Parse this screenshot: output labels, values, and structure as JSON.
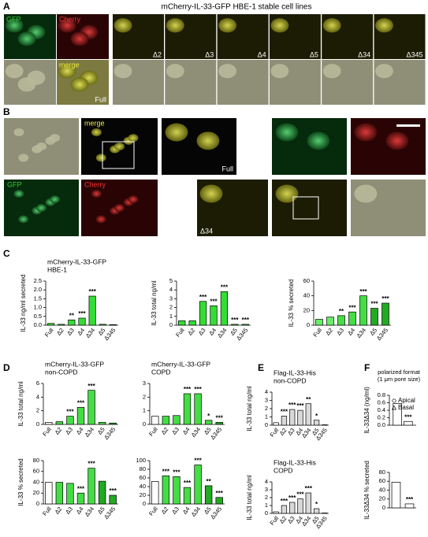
{
  "figure": {
    "panel_labels": [
      "A",
      "B",
      "C",
      "D",
      "E",
      "F"
    ],
    "panel_a": {
      "title": "mCherry-IL-33-GFP HBE-1 stable cell lines",
      "labels": [
        "GFP",
        "Cherry",
        "merge",
        "Full",
        "Δ2",
        "Δ3",
        "Δ4",
        "Δ5",
        "Δ34",
        "Δ345"
      ]
    },
    "panel_b": {
      "labels": [
        "merge",
        "Full",
        "GFP",
        "Cherry",
        "Δ34"
      ]
    }
  },
  "chart_data": [
    {
      "type": "bar",
      "title": "mCherry-IL-33-GFP",
      "subtitle": "HBE-1",
      "y_label": "IL-33 ng/ml secreted",
      "categories": [
        "Full",
        "Δ2",
        "Δ3",
        "Δ4",
        "Δ34",
        "Δ5",
        "Δ345"
      ],
      "values": [
        0.1,
        0.05,
        0.3,
        0.4,
        1.65,
        0.05,
        0.03
      ],
      "annotations": [
        null,
        null,
        "**",
        "***",
        "***",
        null,
        null
      ],
      "colors": [
        "#33dd33",
        "#33dd33",
        "#33dd33",
        "#33dd33",
        "#33dd33",
        "#33dd33",
        "#33dd33"
      ],
      "ylim": [
        0,
        2.5
      ],
      "yticks": [
        {
          "value": 0,
          "label": "0.0"
        },
        0.5,
        {
          "value": 1,
          "label": "1.0"
        },
        1.5,
        {
          "value": 2,
          "label": "2.0"
        },
        2.5
      ]
    },
    {
      "type": "bar",
      "y_label": "IL-33 total ng/ml",
      "categories": [
        "Full",
        "Δ2",
        "Δ3",
        "Δ4",
        "Δ34",
        "Δ5",
        "Δ345"
      ],
      "values": [
        0.5,
        0.5,
        2.7,
        2.2,
        3.8,
        0.1,
        0.1
      ],
      "annotations": [
        null,
        null,
        "***",
        "***",
        "***",
        "***",
        "***"
      ],
      "colors": [
        "#33dd33",
        "#33dd33",
        "#33dd33",
        "#33dd33",
        "#33dd33",
        "#33dd33",
        "#33dd33"
      ],
      "ylim": [
        0,
        5
      ],
      "yticks": [
        0,
        1,
        2,
        3,
        4,
        5
      ]
    },
    {
      "type": "bar",
      "y_label": "IL-33 % secreted",
      "categories": [
        "Full",
        "Δ2",
        "Δ3",
        "Δ4",
        "Δ34",
        "Δ5",
        "Δ345"
      ],
      "values": [
        8,
        11,
        13,
        18,
        40,
        23,
        30
      ],
      "annotations": [
        null,
        null,
        "**",
        "***",
        "***",
        "***",
        "***"
      ],
      "colors": [
        "#66ee66",
        "#66ee66",
        "#44dd44",
        "#44dd44",
        "#44dd44",
        "#22aa22",
        "#22aa22"
      ],
      "ylim": [
        0,
        60
      ],
      "yticks": [
        0,
        20,
        40,
        60
      ]
    },
    {
      "type": "bar",
      "title": "mCherry-IL-33-GFP",
      "subtitle": "non-COPD",
      "y_label": "IL-33 total ng/ml",
      "categories": [
        "Full",
        "Δ2",
        "Δ3",
        "Δ4",
        "Δ34",
        "Δ5",
        "Δ345"
      ],
      "values": [
        0.3,
        0.4,
        1.2,
        2.5,
        5.0,
        0.3,
        0.2
      ],
      "annotations": [
        null,
        null,
        "***",
        "***",
        "***",
        null,
        null
      ],
      "colors": [
        "#ffffff",
        "#44dd44",
        "#44dd44",
        "#44dd44",
        "#44dd44",
        "#44dd44",
        "#22aa22"
      ],
      "ylim": [
        0,
        6
      ],
      "yticks": [
        0,
        2,
        4,
        6
      ]
    },
    {
      "type": "bar",
      "title": "mCherry-IL-33-GFP",
      "subtitle": "COPD",
      "categories": [
        "Full",
        "Δ2",
        "Δ3",
        "Δ4",
        "Δ34",
        "Δ5",
        "Δ345"
      ],
      "values": [
        0.6,
        0.6,
        0.65,
        2.25,
        2.25,
        0.3,
        0.15
      ],
      "annotations": [
        null,
        null,
        null,
        "***",
        "***",
        "*",
        "***"
      ],
      "colors": [
        "#ffffff",
        "#44dd44",
        "#44dd44",
        "#44dd44",
        "#44dd44",
        "#44dd44",
        "#22aa22"
      ],
      "ylim": [
        0,
        3
      ],
      "yticks": [
        0,
        1,
        2,
        3
      ]
    },
    {
      "type": "bar",
      "y_label": "IL-33 % secreted",
      "categories": [
        "Full",
        "Δ2",
        "Δ3",
        "Δ4",
        "Δ34",
        "Δ5",
        "Δ345"
      ],
      "values": [
        40,
        40,
        38,
        20,
        66,
        42,
        16
      ],
      "annotations": [
        null,
        null,
        null,
        "***",
        "***",
        null,
        "***"
      ],
      "colors": [
        "#ffffff",
        "#44dd44",
        "#44dd44",
        "#44dd44",
        "#44dd44",
        "#22aa22",
        "#22aa22"
      ],
      "ylim": [
        0,
        80
      ],
      "yticks": [
        0,
        20,
        40,
        60,
        80
      ]
    },
    {
      "type": "bar",
      "categories": [
        "Full",
        "Δ2",
        "Δ3",
        "Δ4",
        "Δ34",
        "Δ5",
        "Δ345"
      ],
      "values": [
        52,
        65,
        63,
        38,
        90,
        42,
        15
      ],
      "annotations": [
        null,
        "***",
        "***",
        "***",
        "***",
        "**",
        "***"
      ],
      "colors": [
        "#ffffff",
        "#44dd44",
        "#44dd44",
        "#44dd44",
        "#44dd44",
        "#22aa22",
        "#22aa22"
      ],
      "ylim": [
        0,
        100
      ],
      "yticks": [
        0,
        20,
        40,
        60,
        80,
        100
      ]
    },
    {
      "type": "bar",
      "title": "Flag-IL-33-His",
      "subtitle": "non-COPD",
      "y_label": "IL-33 total ng/ml",
      "categories": [
        "Full",
        "Δ2",
        "Δ3",
        "Δ4",
        "Δ34",
        "Δ5",
        "Δ345"
      ],
      "values": [
        0.3,
        1.1,
        1.9,
        1.8,
        2.6,
        0.6,
        0.05
      ],
      "annotations": [
        null,
        "***",
        "***",
        "***",
        "**",
        "*",
        null
      ],
      "colors": [
        "#ffffff",
        "#d9d9d9",
        "#d9d9d9",
        "#d9d9d9",
        "#d9d9d9",
        "#d9d9d9",
        "#d9d9d9"
      ],
      "ylim": [
        0,
        4
      ],
      "yticks": [
        0,
        1,
        2,
        3,
        4
      ]
    },
    {
      "type": "bar",
      "title": "Flag-IL-33-His",
      "subtitle": "COPD",
      "y_label": "IL-33 total ng/ml",
      "categories": [
        "Full",
        "Δ2",
        "Δ3",
        "Δ4",
        "Δ34",
        "Δ5",
        "Δ345"
      ],
      "values": [
        0.2,
        1.0,
        1.4,
        1.85,
        2.6,
        0.6,
        0.05
      ],
      "annotations": [
        null,
        "***",
        "***",
        "***",
        "***",
        "*",
        null
      ],
      "colors": [
        "#ffffff",
        "#d9d9d9",
        "#d9d9d9",
        "#d9d9d9",
        "#d9d9d9",
        "#d9d9d9",
        "#d9d9d9"
      ],
      "ylim": [
        0,
        4
      ],
      "yticks": [
        0,
        1,
        2,
        3,
        4
      ]
    },
    {
      "type": "bar",
      "title": "polarized format (1 μm pore size)",
      "y_label": "IL-33Δ34 (ng/ml)",
      "categories": [
        null
      ],
      "series": [
        {
          "name": "Apical",
          "color": "#ffffff",
          "values": [
            0.58
          ]
        },
        {
          "name": "Basal",
          "color": "#ffffff",
          "values": [
            0.1
          ],
          "annotations": [
            "***"
          ]
        }
      ],
      "ylim": [
        0,
        0.8
      ],
      "yticks": [
        {
          "value": 0,
          "label": "0.0"
        },
        0.2,
        0.4,
        0.6,
        0.8
      ]
    },
    {
      "type": "bar",
      "y_label": "IL-33Δ34 % secreted",
      "categories": [
        null,
        null
      ],
      "values": [
        58,
        9
      ],
      "annotations": [
        null,
        "***"
      ],
      "colors": [
        "#ffffff",
        "#ffffff"
      ],
      "ylim": [
        0,
        80
      ],
      "yticks": [
        0,
        20,
        40,
        60,
        80
      ]
    }
  ]
}
